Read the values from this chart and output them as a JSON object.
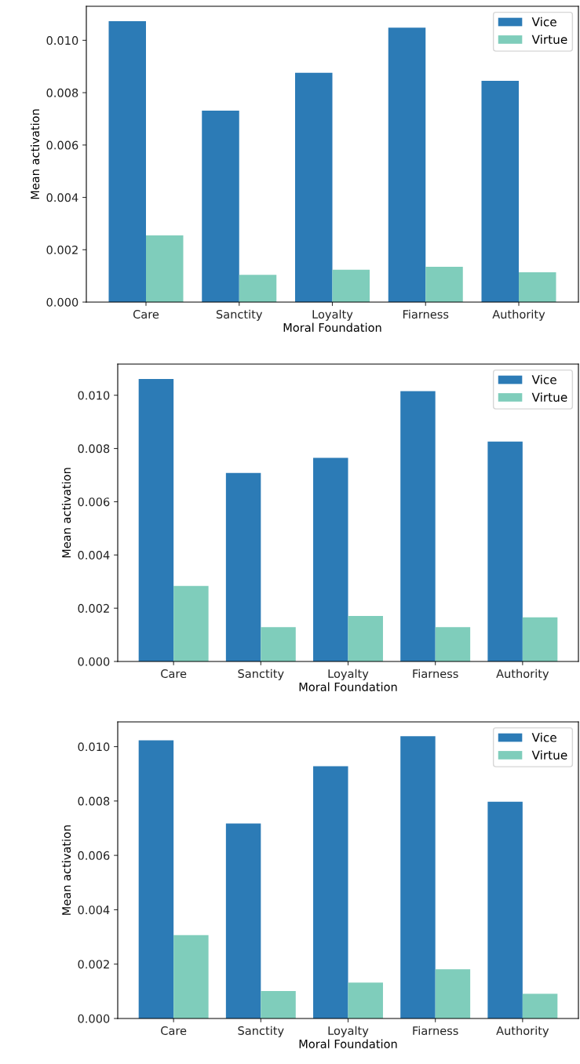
{
  "chart_data": [
    {
      "type": "bar",
      "xlabel": "Moral Foundation",
      "ylabel": "Mean activation",
      "categories": [
        "Care",
        "Sanctity",
        "Loyalty",
        "Fiarness",
        "Authority"
      ],
      "series": [
        {
          "name": "Vice",
          "color": "#2c7bb6",
          "values": [
            0.01073,
            0.00731,
            0.00876,
            0.01048,
            0.00845
          ]
        },
        {
          "name": "Virtue",
          "color": "#7fcdbb",
          "values": [
            0.00255,
            0.00104,
            0.00124,
            0.00135,
            0.00114
          ]
        }
      ],
      "ylim": [
        0,
        0.0113
      ],
      "yticks": [
        {
          "value": 0,
          "label": "0.000"
        },
        {
          "value": 0.002,
          "label": "0.002"
        },
        {
          "value": 0.004,
          "label": "0.004"
        },
        {
          "value": 0.006,
          "label": "0.006"
        },
        {
          "value": 0.008,
          "label": "0.008"
        },
        {
          "value": 0.01,
          "label": "0.010"
        }
      ],
      "legend": "top right",
      "grid": false
    },
    {
      "type": "bar",
      "xlabel": "Moral Foundation",
      "ylabel": "Mean activation",
      "categories": [
        "Care",
        "Sanctity",
        "Loyalty",
        "Fiarness",
        "Authority"
      ],
      "series": [
        {
          "name": "Vice",
          "color": "#2c7bb6",
          "values": [
            0.01061,
            0.00708,
            0.00765,
            0.01015,
            0.00826
          ]
        },
        {
          "name": "Virtue",
          "color": "#7fcdbb",
          "values": [
            0.00284,
            0.00129,
            0.00171,
            0.00129,
            0.00166
          ]
        }
      ],
      "ylim": [
        0,
        0.01117
      ],
      "yticks": [
        {
          "value": 0,
          "label": "0.000"
        },
        {
          "value": 0.002,
          "label": "0.002"
        },
        {
          "value": 0.004,
          "label": "0.004"
        },
        {
          "value": 0.006,
          "label": "0.006"
        },
        {
          "value": 0.008,
          "label": "0.008"
        },
        {
          "value": 0.01,
          "label": "0.010"
        }
      ],
      "legend": "top right",
      "grid": false
    },
    {
      "type": "bar",
      "xlabel": "Moral Foundation",
      "ylabel": "Mean activation",
      "categories": [
        "Care",
        "Sanctity",
        "Loyalty",
        "Fiarness",
        "Authority"
      ],
      "series": [
        {
          "name": "Vice",
          "color": "#2c7bb6",
          "values": [
            0.01023,
            0.00717,
            0.00928,
            0.01038,
            0.00797
          ]
        },
        {
          "name": "Virtue",
          "color": "#7fcdbb",
          "values": [
            0.00307,
            0.00101,
            0.00132,
            0.00181,
            0.00091
          ]
        }
      ],
      "ylim": [
        0,
        0.01091
      ],
      "yticks": [
        {
          "value": 0,
          "label": "0.000"
        },
        {
          "value": 0.002,
          "label": "0.002"
        },
        {
          "value": 0.004,
          "label": "0.004"
        },
        {
          "value": 0.006,
          "label": "0.006"
        },
        {
          "value": 0.008,
          "label": "0.008"
        },
        {
          "value": 0.01,
          "label": "0.010"
        }
      ],
      "legend": "top right",
      "grid": false
    }
  ]
}
